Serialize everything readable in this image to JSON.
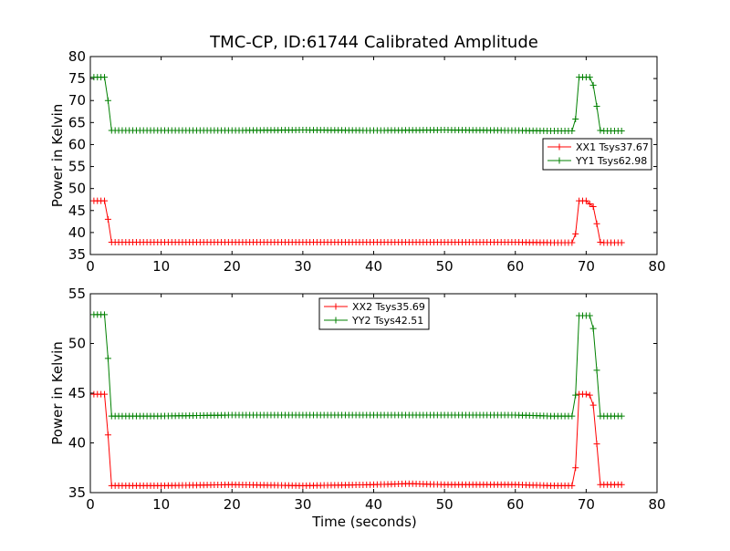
{
  "figure": {
    "title": "TMC-CP, ID:61744 Calibrated Amplitude",
    "xlabel": "Time (seconds)"
  },
  "chart_data": [
    {
      "type": "line",
      "ylabel": "Power in Kelvin",
      "xlabel": "",
      "xlim": [
        0,
        80
      ],
      "ylim": [
        35,
        80
      ],
      "xticks": [
        0,
        10,
        20,
        30,
        40,
        50,
        60,
        70,
        80
      ],
      "yticks": [
        35,
        40,
        45,
        50,
        55,
        60,
        65,
        70,
        75,
        80
      ],
      "grid": false,
      "legend_position": "right",
      "series": [
        {
          "name": "XX1 Tsys37.67",
          "color": "#ff0000",
          "x": [
            0.5,
            2.0,
            2.5,
            3.0,
            4.0,
            10.0,
            20.0,
            30.0,
            40.0,
            50.0,
            60.0,
            65.0,
            68.0,
            68.5,
            69.0,
            70.0,
            70.5,
            71.0,
            71.5,
            72.0,
            72.5,
            75.0
          ],
          "y": [
            47.2,
            47.2,
            43.0,
            37.8,
            37.8,
            37.8,
            37.8,
            37.8,
            37.8,
            37.8,
            37.8,
            37.7,
            37.7,
            39.7,
            47.2,
            47.2,
            46.5,
            45.9,
            42.0,
            37.8,
            37.7,
            37.7
          ]
        },
        {
          "name": "YY1 Tsys62.98",
          "color": "#008000",
          "x": [
            0.5,
            2.0,
            2.5,
            3.0,
            4.0,
            10.0,
            20.0,
            30.0,
            40.0,
            50.0,
            60.0,
            65.0,
            68.0,
            68.5,
            69.0,
            70.0,
            70.5,
            71.0,
            71.5,
            72.0,
            72.5,
            75.0
          ],
          "y": [
            75.3,
            75.3,
            70.0,
            63.2,
            63.2,
            63.2,
            63.2,
            63.3,
            63.2,
            63.3,
            63.2,
            63.1,
            63.1,
            65.8,
            75.3,
            75.3,
            75.3,
            73.5,
            68.7,
            63.2,
            63.1,
            63.1
          ]
        }
      ]
    },
    {
      "type": "line",
      "ylabel": "Power in Kelvin",
      "xlabel": "Time (seconds)",
      "xlim": [
        0,
        80
      ],
      "ylim": [
        35,
        55
      ],
      "xticks": [
        0,
        10,
        20,
        30,
        40,
        50,
        60,
        70,
        80
      ],
      "yticks": [
        35,
        40,
        45,
        50,
        55
      ],
      "grid": false,
      "legend_position": "top-center",
      "series": [
        {
          "name": "XX2 Tsys35.69",
          "color": "#ff0000",
          "x": [
            0.5,
            2.0,
            2.5,
            3.0,
            4.0,
            10.0,
            20.0,
            30.0,
            40.0,
            45.0,
            50.0,
            60.0,
            65.0,
            68.0,
            68.5,
            69.0,
            70.0,
            70.5,
            71.0,
            71.5,
            72.0,
            72.5,
            75.0
          ],
          "y": [
            44.9,
            44.9,
            40.8,
            35.7,
            35.7,
            35.7,
            35.8,
            35.7,
            35.8,
            35.9,
            35.8,
            35.8,
            35.7,
            35.7,
            37.5,
            44.9,
            44.9,
            44.8,
            43.8,
            39.9,
            35.8,
            35.8,
            35.8
          ]
        },
        {
          "name": "YY2 Tsys42.51",
          "color": "#008000",
          "x": [
            0.5,
            2.0,
            2.5,
            3.0,
            4.0,
            10.0,
            20.0,
            30.0,
            40.0,
            50.0,
            60.0,
            65.0,
            68.0,
            68.5,
            69.0,
            70.0,
            70.5,
            71.0,
            71.5,
            72.0,
            72.5,
            75.0
          ],
          "y": [
            52.9,
            52.9,
            48.5,
            42.7,
            42.7,
            42.7,
            42.8,
            42.8,
            42.8,
            42.8,
            42.8,
            42.7,
            42.7,
            44.8,
            52.8,
            52.8,
            52.8,
            51.5,
            47.3,
            42.7,
            42.7,
            42.7
          ]
        }
      ]
    }
  ]
}
